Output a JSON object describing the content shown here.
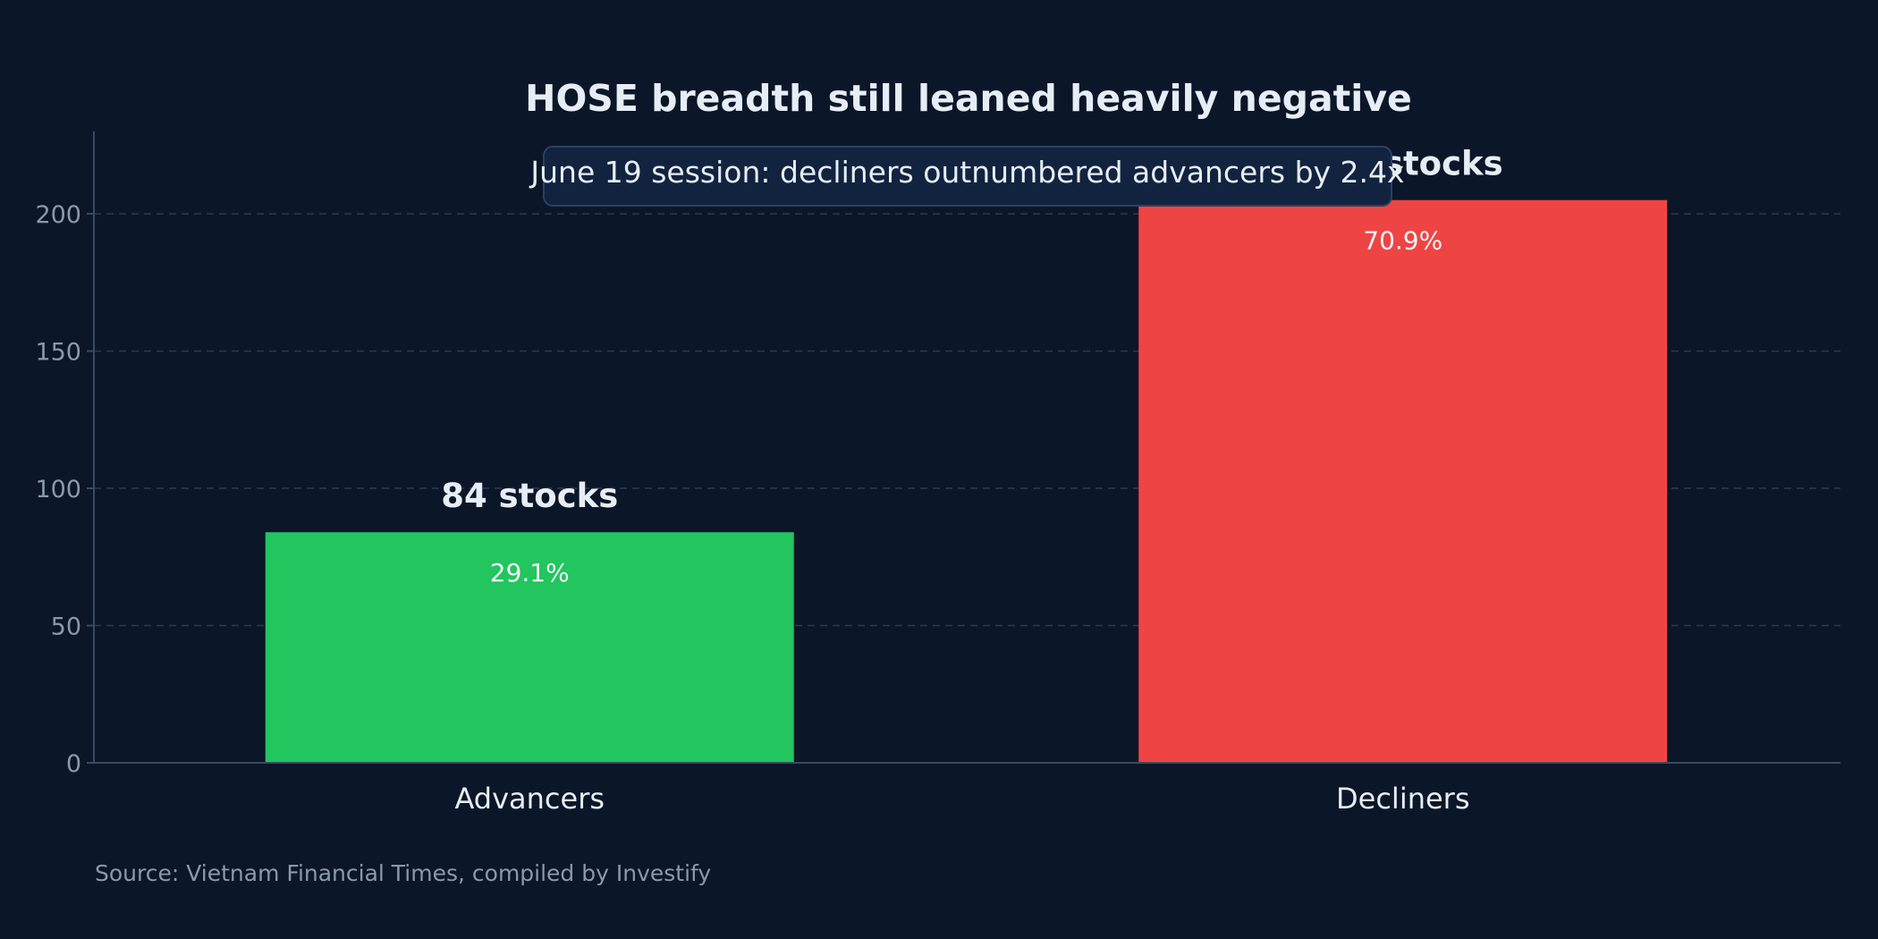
{
  "chart_data": {
    "type": "bar",
    "title": "HOSE breadth still leaned heavily negative",
    "categories": [
      "Advancers",
      "Decliners"
    ],
    "values": [
      84,
      205
    ],
    "value_labels": [
      "84 stocks",
      "205 stocks"
    ],
    "percent_labels": [
      "29.1%",
      "70.9%"
    ],
    "colors": [
      "#22c55e",
      "#ef4444"
    ],
    "xlabel": "",
    "ylabel": "",
    "ylim": [
      0,
      230
    ],
    "yticks": [
      0,
      50,
      100,
      150,
      200
    ],
    "grid": true,
    "annotation": "June 19 session: decliners outnumbered advancers by 2.4x",
    "source": "Source: Vietnam Financial Times, compiled by Investify"
  }
}
